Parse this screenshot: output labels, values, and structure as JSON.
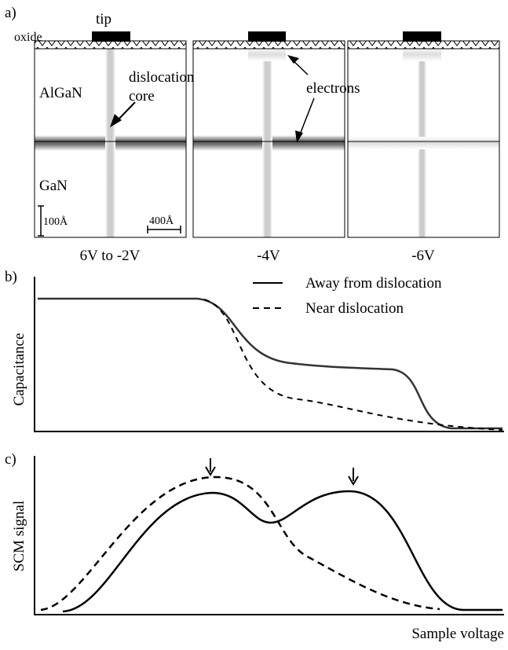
{
  "panel_a": {
    "label": "a)",
    "tip": "tip",
    "oxide": "oxide",
    "dislocation": "dislocation",
    "core": "core",
    "layers": [
      "AlGaN",
      "GaN"
    ],
    "scale_bars": [
      "100Å",
      "400Å"
    ],
    "electrons": "electrons",
    "captions": [
      "6V to -2V",
      "-4V",
      "-6V"
    ]
  },
  "panel_b": {
    "label": "b)",
    "legend": [
      "Away from dislocation",
      "Near dislocation"
    ],
    "y_label": "Capacitance"
  },
  "panel_c": {
    "label": "c)",
    "y_label": "SCM signal",
    "x_label": "Sample voltage"
  }
}
